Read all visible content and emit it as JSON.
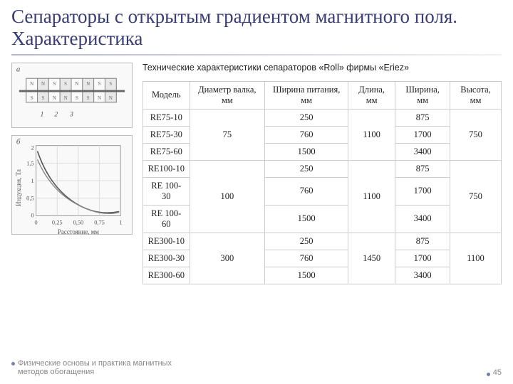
{
  "title": "Сепараторы с открытым градиентом магнитного поля. Характеристика",
  "caption": "Технические характеристики сепараторов «Roll» фирмы «Eriez»",
  "table": {
    "headers": {
      "model": "Модель",
      "diameter": "Диаметр валка, мм",
      "width_feed": "Ширина питания, мм",
      "length": "Длина, мм",
      "width": "Ширина, мм",
      "height": "Высота, мм"
    },
    "groups": [
      {
        "diameter": "75",
        "length": "1100",
        "height": "750",
        "rows": [
          {
            "model": "RE75-10",
            "width_feed": "250",
            "width": "875"
          },
          {
            "model": "RE75-30",
            "width_feed": "760",
            "width": "1700"
          },
          {
            "model": "RE75-60",
            "width_feed": "1500",
            "width": "3400"
          }
        ]
      },
      {
        "diameter": "100",
        "length": "1100",
        "height": "750",
        "rows": [
          {
            "model": "RE100-10",
            "width_feed": "250",
            "width": "875"
          },
          {
            "model": "RE 100-30",
            "width_feed": "760",
            "width": "1700"
          },
          {
            "model": "RE 100-60",
            "width_feed": "1500",
            "width": "3400"
          }
        ]
      },
      {
        "diameter": "300",
        "length": "1450",
        "height": "1100",
        "rows": [
          {
            "model": "RE300-10",
            "width_feed": "250",
            "width": "875"
          },
          {
            "model": "RE300-30",
            "width_feed": "760",
            "width": "1700"
          },
          {
            "model": "RE300-60",
            "width_feed": "1500",
            "width": "3400"
          }
        ]
      }
    ]
  },
  "figures": {
    "a_label": "а",
    "b_label": "б",
    "a_labels": [
      "N",
      "S",
      "N",
      "S",
      "S",
      "N",
      "S",
      "N",
      "N",
      "S",
      "N",
      "S",
      "S",
      "N",
      "S",
      "N"
    ],
    "a_nums": [
      "1",
      "2",
      "3"
    ],
    "b_ylabel": "Индукция, Тл",
    "b_xlabel": "Расстояние, мм",
    "b_yticks": [
      "0",
      "0,5",
      "1",
      "1,5",
      "2"
    ],
    "b_xticks": [
      "0",
      "0,25",
      "0,50",
      "0,75",
      "1"
    ],
    "b_curve_color": "#666"
  },
  "footer": {
    "text": "Физические основы и практика магнитных методов обогащения",
    "page": "45"
  },
  "colors": {
    "title": "#383c74",
    "border": "#cccccc",
    "footer": "#888888",
    "bullet": "#7a7ea8"
  }
}
